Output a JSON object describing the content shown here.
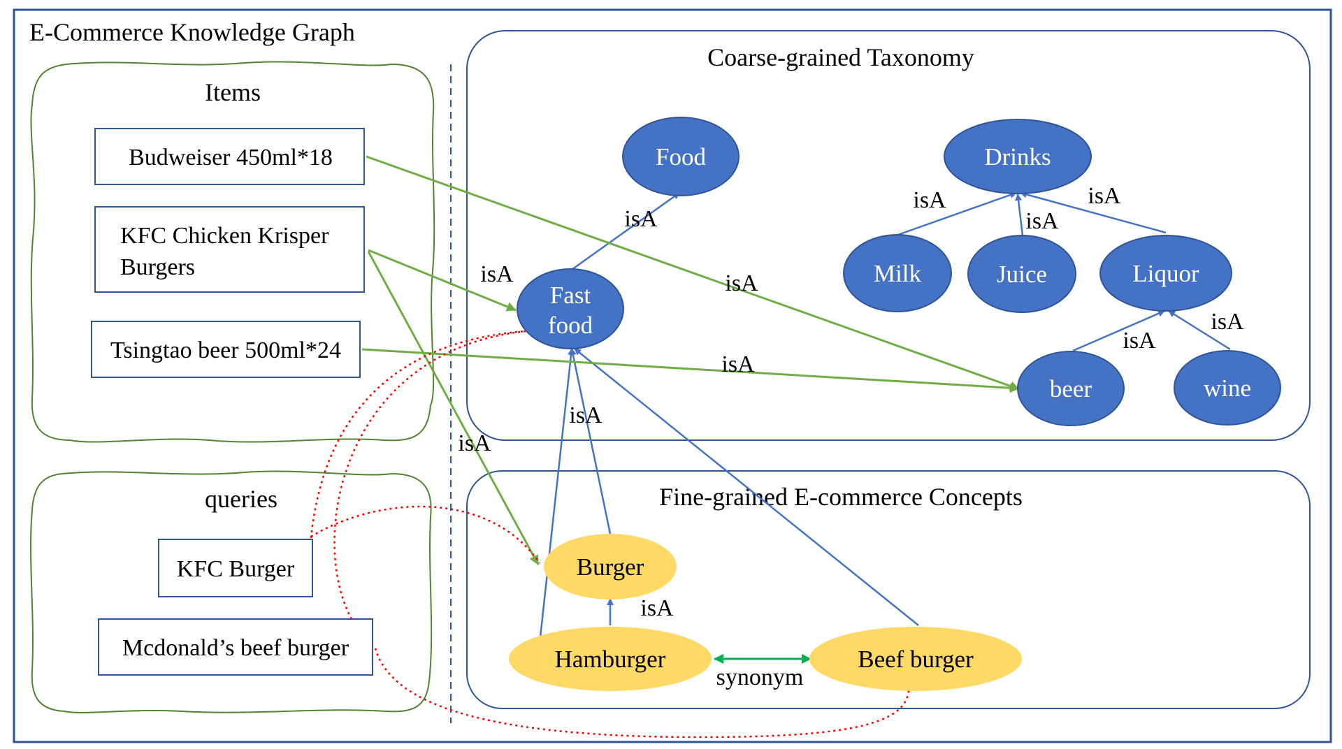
{
  "title": "E-Commerce Knowledge Graph",
  "items_panel": {
    "title": "Items",
    "items": [
      "Budweiser 450ml*18",
      "KFC Chicken Krisper",
      "Burgers",
      "Tsingtao beer 500ml*24"
    ]
  },
  "queries_panel": {
    "title": "queries",
    "queries": [
      "KFC Burger",
      "Mcdonald’s beef burger"
    ]
  },
  "taxonomy_panel": {
    "title": "Coarse-grained Taxonomy",
    "nodes": {
      "food": "Food",
      "drinks": "Drinks",
      "fast_food_1": "Fast",
      "fast_food_2": "food",
      "milk": "Milk",
      "juice": "Juice",
      "liquor": "Liquor",
      "beer": "beer",
      "wine": "wine"
    }
  },
  "concepts_panel": {
    "title": "Fine-grained E-commerce Concepts",
    "nodes": {
      "burger": "Burger",
      "hamburger": "Hamburger",
      "beef_burger": "Beef burger"
    }
  },
  "edge_labels": {
    "isa": "isA",
    "synonym": "synonym"
  },
  "colors": {
    "frame": "#2f5597",
    "taxonomy_node": "#4472c4",
    "concept_node": "#ffd966",
    "item_edge": "#70ad47",
    "synonym_edge": "#00b050",
    "query_link": "#ff0000"
  }
}
